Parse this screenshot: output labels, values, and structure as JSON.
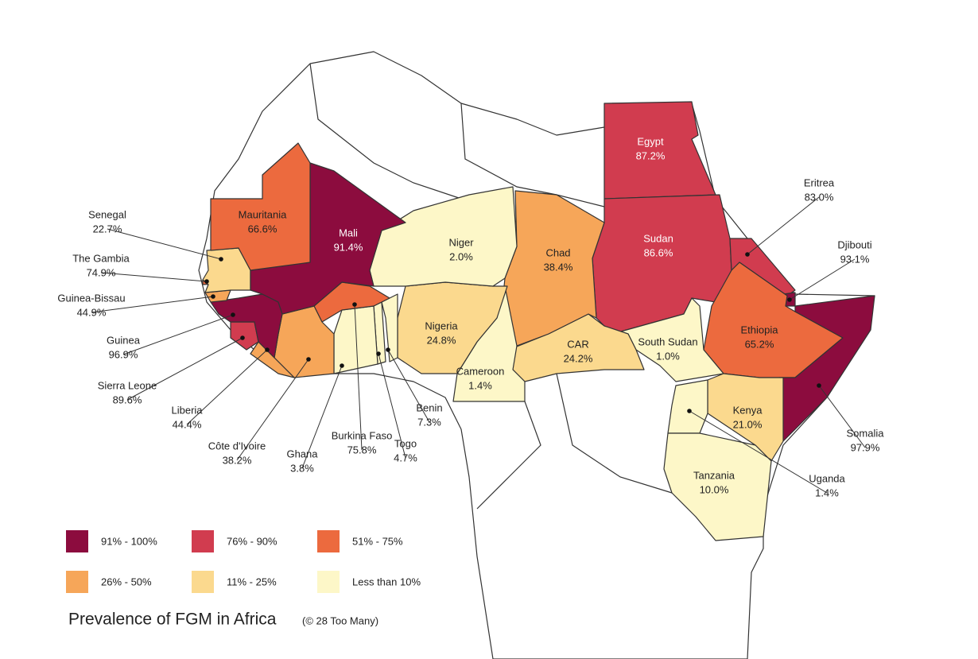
{
  "title": "Prevalence of FGM in Africa",
  "credit": "(© 28 Too Many)",
  "legend": [
    {
      "label": "91% - 100%",
      "color": "#8c0c3e"
    },
    {
      "label": "76% - 90%",
      "color": "#d13c4f"
    },
    {
      "label": "51% - 75%",
      "color": "#ec6a3e"
    },
    {
      "label": "26% - 50%",
      "color": "#f6a659"
    },
    {
      "label": "11% - 25%",
      "color": "#fbd98e"
    },
    {
      "label": "Less than 10%",
      "color": "#fdf7c8"
    }
  ],
  "countries": [
    {
      "name": "Egypt",
      "value": "87.2%",
      "color": "#d13c4f"
    },
    {
      "name": "Sudan",
      "value": "86.6%",
      "color": "#d13c4f"
    },
    {
      "name": "Eritrea",
      "value": "83.0%",
      "color": "#d13c4f"
    },
    {
      "name": "Djibouti",
      "value": "93.1%",
      "color": "#8c0c3e"
    },
    {
      "name": "Ethiopia",
      "value": "65.2%",
      "color": "#ec6a3e"
    },
    {
      "name": "Somalia",
      "value": "97.9%",
      "color": "#8c0c3e"
    },
    {
      "name": "South Sudan",
      "value": "1.0%",
      "color": "#fdf7c8"
    },
    {
      "name": "Kenya",
      "value": "21.0%",
      "color": "#fbd98e"
    },
    {
      "name": "Uganda",
      "value": "1.4%",
      "color": "#fdf7c8"
    },
    {
      "name": "Tanzania",
      "value": "10.0%",
      "color": "#fdf7c8"
    },
    {
      "name": "CAR",
      "value": "24.2%",
      "color": "#fbd98e"
    },
    {
      "name": "Chad",
      "value": "38.4%",
      "color": "#f6a659"
    },
    {
      "name": "Cameroon",
      "value": "1.4%",
      "color": "#fdf7c8"
    },
    {
      "name": "Nigeria",
      "value": "24.8%",
      "color": "#fbd98e"
    },
    {
      "name": "Niger",
      "value": "2.0%",
      "color": "#fdf7c8"
    },
    {
      "name": "Benin",
      "value": "7.3%",
      "color": "#fdf7c8"
    },
    {
      "name": "Togo",
      "value": "4.7%",
      "color": "#fdf7c8"
    },
    {
      "name": "Ghana",
      "value": "3.8%",
      "color": "#fdf7c8"
    },
    {
      "name": "Burkina Faso",
      "value": "75.8%",
      "color": "#ec6a3e"
    },
    {
      "name": "Côte d'Ivoire",
      "value": "38.2%",
      "color": "#f6a659"
    },
    {
      "name": "Liberia",
      "value": "44.4%",
      "color": "#f6a659"
    },
    {
      "name": "Sierra Leone",
      "value": "89.6%",
      "color": "#d13c4f"
    },
    {
      "name": "Guinea",
      "value": "96.9%",
      "color": "#8c0c3e"
    },
    {
      "name": "Guinea-Bissau",
      "value": "44.9%",
      "color": "#f6a659"
    },
    {
      "name": "The Gambia",
      "value": "74.9%",
      "color": "#ec6a3e"
    },
    {
      "name": "Senegal",
      "value": "22.7%",
      "color": "#fbd98e"
    },
    {
      "name": "Mali",
      "value": "91.4%",
      "color": "#8c0c3e"
    },
    {
      "name": "Mauritania",
      "value": "66.6%",
      "color": "#ec6a3e"
    }
  ]
}
